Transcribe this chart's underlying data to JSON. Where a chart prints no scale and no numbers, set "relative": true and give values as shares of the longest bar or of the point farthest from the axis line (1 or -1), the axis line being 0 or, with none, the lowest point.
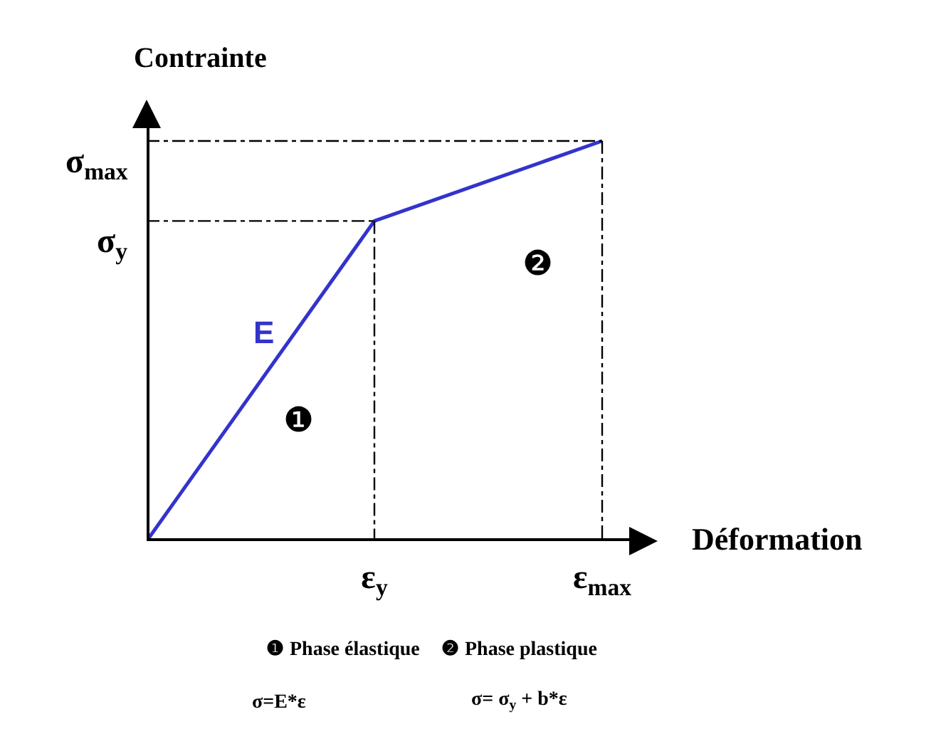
{
  "chart_data": {
    "type": "line",
    "relative": true,
    "xlabel": "Déformation",
    "ylabel": "Contrainte",
    "marker": "none",
    "categories": [
      null,
      "ε$_{y}$",
      "ε$_{max}$"
    ],
    "series": [
      {
        "color": "#3333cc",
        "values": [
          0,
          0.8,
          1
        ],
        "line_style": "solid"
      }
    ],
    "annotations": [
      "σ$_{max}$",
      "σ$_{y}$",
      "E",
      "❶",
      "❷",
      "❶ Phase élastique",
      "❷ Phase plastique",
      "σ=E*ε",
      "σ= σ$_{y}$ + b*ε"
    ]
  }
}
